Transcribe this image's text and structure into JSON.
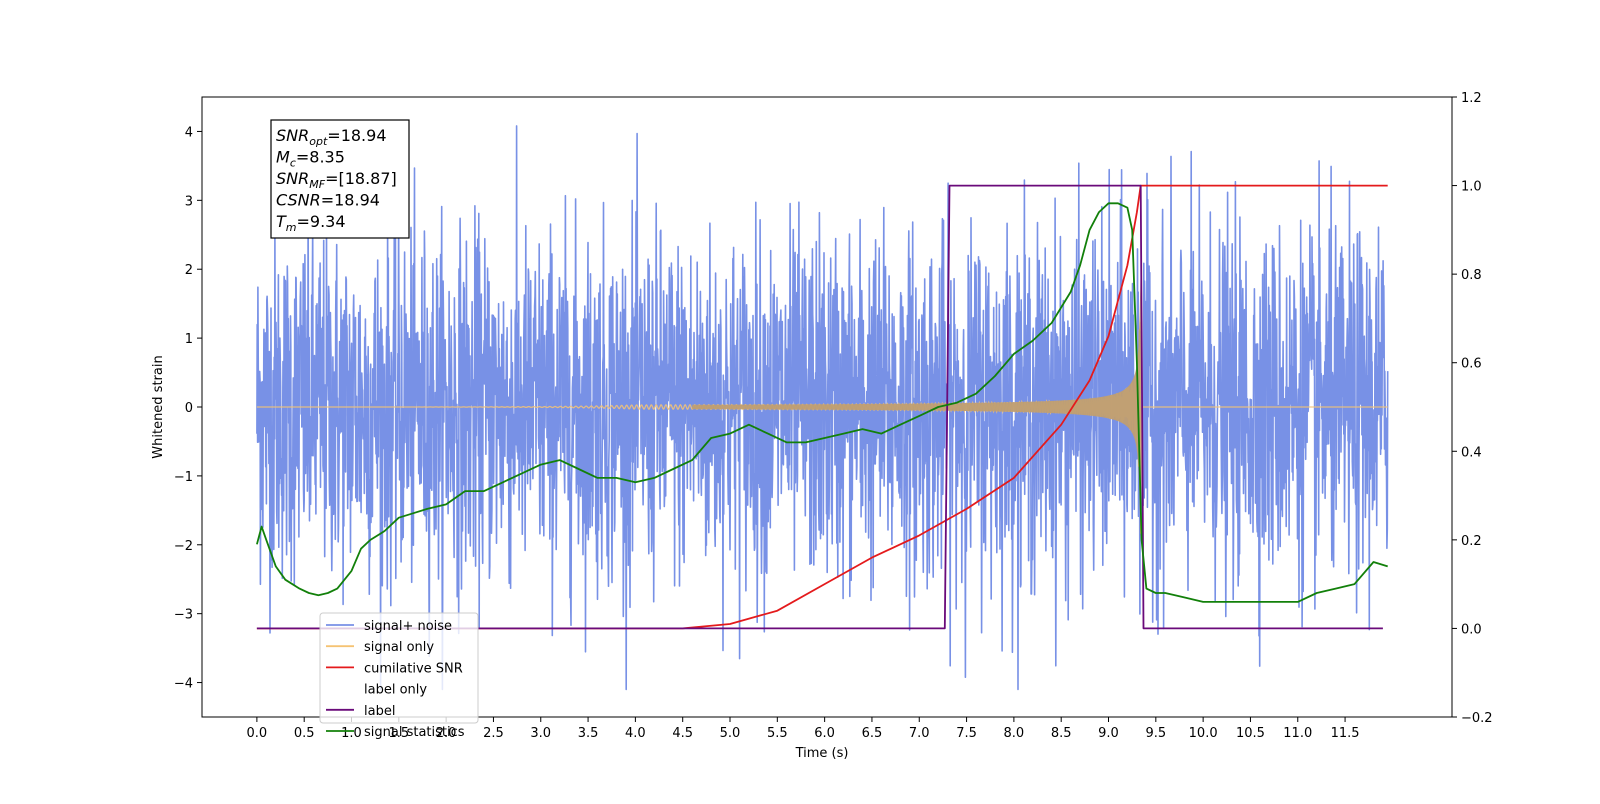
{
  "chart_data": {
    "type": "line",
    "xlabel": "Time (s)",
    "ylabel": "Whitened strain",
    "xlim": [
      -0.58,
      12.63
    ],
    "ylim": [
      -4.5,
      4.5
    ],
    "ylim_right": [
      -0.2,
      1.2
    ],
    "grid": false,
    "legend_position": "lower-left",
    "x_ticks": [
      "0.0",
      "0.5",
      "1.0",
      "1.5",
      "2.0",
      "2.5",
      "3.0",
      "3.5",
      "4.0",
      "4.5",
      "5.0",
      "5.5",
      "6.0",
      "6.5",
      "7.0",
      "7.5",
      "8.0",
      "8.5",
      "9.0",
      "9.5",
      "10.0",
      "10.5",
      "11.0",
      "11.5"
    ],
    "y_ticks": [
      "4",
      "3",
      "2",
      "1",
      "0",
      "−1",
      "−2",
      "−3",
      "−4"
    ],
    "y_ticks_right": [
      "1.2",
      "1.0",
      "0.8",
      "0.6",
      "0.4",
      "0.2",
      "0.0",
      "−0.2"
    ],
    "info_box": {
      "lines": [
        {
          "sym": "SNR",
          "sub": "opt",
          "value": "=18.94"
        },
        {
          "sym": "M",
          "sub": "c",
          "value": "=8.35"
        },
        {
          "sym": "SNR",
          "sub": "MF",
          "value": "=[18.87]"
        },
        {
          "sym": "CSNR",
          "sub": "",
          "value": "=18.94"
        },
        {
          "sym": "T",
          "sub": "m",
          "value": "=9.34"
        }
      ]
    },
    "series": [
      {
        "name": "signal+ noise",
        "color": "#7891e6",
        "axis": "left",
        "description_kind": "noise",
        "amplitude_range": [
          -4.1,
          4.1
        ]
      },
      {
        "name": "signal only",
        "color": "#f5c373",
        "axis": "left",
        "chirp": {
          "start": 0.0,
          "merger": 9.34,
          "end": 11.95,
          "peak_amplitude": 2.0
        }
      },
      {
        "name": "cumilative SNR",
        "color": "#e41a1c",
        "axis": "right",
        "x": [
          0.0,
          4.5,
          5.0,
          5.5,
          6.0,
          6.5,
          7.0,
          7.5,
          8.0,
          8.5,
          8.8,
          9.0,
          9.2,
          9.3,
          9.34,
          9.36,
          11.95
        ],
        "values": [
          0.0,
          0.0,
          0.01,
          0.04,
          0.1,
          0.16,
          0.21,
          0.27,
          0.34,
          0.46,
          0.56,
          0.66,
          0.82,
          0.94,
          1.0,
          1.0,
          1.0
        ]
      },
      {
        "name": "label only",
        "color": "#999999",
        "axis": "right",
        "hidden": true
      },
      {
        "name": "label",
        "color": "#6a0a7a",
        "axis": "right",
        "x": [
          0.0,
          7.27,
          7.32,
          9.34,
          9.37,
          11.9
        ],
        "values": [
          0.0,
          0.0,
          1.0,
          1.0,
          0.0,
          0.0
        ]
      },
      {
        "name": "signal statistics",
        "color": "#12800a",
        "axis": "right",
        "x": [
          0.0,
          0.05,
          0.1,
          0.2,
          0.3,
          0.45,
          0.55,
          0.65,
          0.75,
          0.85,
          1.0,
          1.1,
          1.2,
          1.35,
          1.5,
          1.65,
          1.8,
          2.0,
          2.2,
          2.4,
          2.6,
          2.8,
          3.0,
          3.2,
          3.4,
          3.6,
          3.8,
          4.0,
          4.2,
          4.4,
          4.6,
          4.8,
          5.0,
          5.2,
          5.4,
          5.6,
          5.8,
          6.0,
          6.2,
          6.4,
          6.6,
          6.8,
          7.0,
          7.2,
          7.4,
          7.6,
          7.8,
          8.0,
          8.2,
          8.4,
          8.6,
          8.7,
          8.8,
          8.9,
          9.0,
          9.1,
          9.2,
          9.25,
          9.3,
          9.35,
          9.4,
          9.5,
          9.6,
          9.8,
          10.0,
          10.3,
          10.5,
          10.8,
          11.0,
          11.2,
          11.4,
          11.6,
          11.8,
          11.95
        ],
        "values": [
          0.19,
          0.23,
          0.2,
          0.14,
          0.11,
          0.09,
          0.08,
          0.075,
          0.08,
          0.09,
          0.13,
          0.18,
          0.2,
          0.22,
          0.25,
          0.26,
          0.27,
          0.28,
          0.31,
          0.31,
          0.33,
          0.35,
          0.37,
          0.38,
          0.36,
          0.34,
          0.34,
          0.33,
          0.34,
          0.36,
          0.38,
          0.43,
          0.44,
          0.46,
          0.44,
          0.42,
          0.42,
          0.43,
          0.44,
          0.45,
          0.44,
          0.46,
          0.48,
          0.5,
          0.51,
          0.53,
          0.57,
          0.62,
          0.65,
          0.69,
          0.76,
          0.82,
          0.9,
          0.94,
          0.96,
          0.96,
          0.95,
          0.9,
          0.6,
          0.2,
          0.09,
          0.08,
          0.08,
          0.07,
          0.06,
          0.06,
          0.06,
          0.06,
          0.06,
          0.08,
          0.09,
          0.1,
          0.15,
          0.14
        ]
      }
    ]
  }
}
